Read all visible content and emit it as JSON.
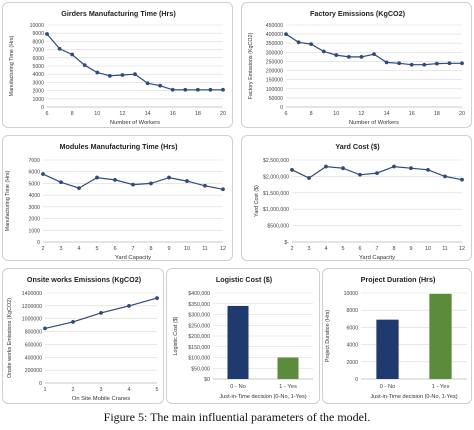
{
  "caption": "Figure 5: The main influential parameters of the model.",
  "colors": {
    "line": "#2f4b7c",
    "bar_no": "#1f3a6e",
    "bar_yes": "#5b8c3a"
  },
  "chart_data": [
    {
      "type": "line",
      "title": "Girders Manufacturing Time (Hrs)",
      "xlabel": "Number of Workers",
      "ylabel": "Manufacturing Time (Hrs)",
      "x": [
        6,
        7,
        8,
        9,
        10,
        11,
        12,
        13,
        14,
        15,
        16,
        17,
        18,
        19,
        20
      ],
      "values": [
        8900,
        7100,
        6400,
        5100,
        4200,
        3800,
        3900,
        4000,
        2900,
        2600,
        2100,
        2100,
        2100,
        2100,
        2100
      ],
      "xticks": [
        6,
        8,
        10,
        12,
        14,
        16,
        18,
        20
      ],
      "xlim": [
        6,
        20
      ],
      "ylim": [
        0,
        10000
      ],
      "yticks": [
        0,
        1000,
        2000,
        3000,
        4000,
        5000,
        6000,
        7000,
        8000,
        9000,
        10000
      ],
      "ytick_labels": [
        "0",
        "1000",
        "2000",
        "3000",
        "4000",
        "5000",
        "6000",
        "7000",
        "8000",
        "9000",
        "10000"
      ],
      "grid": true
    },
    {
      "type": "line",
      "title": "Factory Emissions (KgCO2)",
      "xlabel": "Number of Workers",
      "ylabel": "Factory Emissions (KgCO2)",
      "x": [
        6,
        7,
        8,
        9,
        10,
        11,
        12,
        13,
        14,
        15,
        16,
        17,
        18,
        19,
        20
      ],
      "values": [
        400000,
        355000,
        345000,
        305000,
        285000,
        275000,
        275000,
        290000,
        245000,
        240000,
        232000,
        232000,
        238000,
        240000,
        240000
      ],
      "xticks": [
        6,
        8,
        10,
        12,
        14,
        16,
        18,
        20
      ],
      "xlim": [
        6,
        20
      ],
      "ylim": [
        0,
        450000
      ],
      "yticks": [
        0,
        50000,
        100000,
        150000,
        200000,
        250000,
        300000,
        350000,
        400000,
        450000
      ],
      "ytick_labels": [
        "0",
        "50000",
        "100000",
        "150000",
        "200000",
        "250000",
        "300000",
        "350000",
        "400000",
        "450000"
      ],
      "grid": true
    },
    {
      "type": "line",
      "title": "Modules Manufacturing Time (Hrs)",
      "xlabel": "Yard Capacity",
      "ylabel": "Manufacturing Time (Hrs)",
      "x": [
        2,
        3,
        4,
        5,
        6,
        7,
        8,
        9,
        10,
        11,
        12
      ],
      "values": [
        5800,
        5100,
        4600,
        5500,
        5300,
        4900,
        5000,
        5500,
        5200,
        4800,
        4500
      ],
      "xticks": [
        2,
        3,
        4,
        5,
        6,
        7,
        8,
        9,
        10,
        11,
        12
      ],
      "xlim": [
        2,
        12
      ],
      "ylim": [
        0,
        7000
      ],
      "yticks": [
        0,
        1000,
        2000,
        3000,
        4000,
        5000,
        6000,
        7000
      ],
      "ytick_labels": [
        "0",
        "1000",
        "2000",
        "3000",
        "4000",
        "5000",
        "6000",
        "7000"
      ],
      "grid": true
    },
    {
      "type": "line",
      "title": "Yard Cost ($)",
      "xlabel": "Yard Capacity",
      "ylabel": "Yard Cost ($)",
      "x": [
        2,
        3,
        4,
        5,
        6,
        7,
        8,
        9,
        10,
        11,
        12
      ],
      "values": [
        2200000,
        1950000,
        2300000,
        2250000,
        2050000,
        2100000,
        2300000,
        2250000,
        2200000,
        2000000,
        1900000
      ],
      "xticks": [
        2,
        3,
        4,
        5,
        6,
        7,
        8,
        9,
        10,
        11,
        12
      ],
      "xlim": [
        2,
        12
      ],
      "ylim": [
        0,
        2500000
      ],
      "yticks": [
        0,
        500000,
        1000000,
        1500000,
        2000000,
        2500000
      ],
      "ytick_labels": [
        "$-",
        "$500,000",
        "$1,000,000",
        "$1,500,000",
        "$2,000,000",
        "$2,500,000"
      ],
      "grid": true
    },
    {
      "type": "line",
      "title": "Onsite works Emissions (KgCO2)",
      "xlabel": "On Site Mobile Cranes",
      "ylabel": "Onsite works Emissions (KgCO2)",
      "x": [
        1,
        2,
        3,
        4,
        5
      ],
      "values": [
        850000,
        950000,
        1090000,
        1200000,
        1320000
      ],
      "xticks": [
        1,
        2,
        3,
        4,
        5
      ],
      "xlim": [
        1,
        5
      ],
      "ylim": [
        0,
        1400000
      ],
      "yticks": [
        0,
        200000,
        400000,
        600000,
        800000,
        1000000,
        1200000,
        1400000
      ],
      "ytick_labels": [
        "0",
        "200000",
        "400000",
        "600000",
        "800000",
        "1000000",
        "1200000",
        "1400000"
      ],
      "grid": true
    },
    {
      "type": "bar",
      "title": "Logistic Cost ($)",
      "xlabel": "Just-in-Time decision (0-No, 1-Yes)",
      "ylabel": "Logistic Cost ($)",
      "categories": [
        "0 - No",
        "1 - Yes"
      ],
      "values": [
        340000,
        100000
      ],
      "ylim": [
        0,
        400000
      ],
      "yticks": [
        0,
        50000,
        100000,
        150000,
        200000,
        250000,
        300000,
        350000,
        400000
      ],
      "ytick_labels": [
        "$0",
        "$50,000",
        "$100,000",
        "$150,000",
        "$200,000",
        "$250,000",
        "$300,000",
        "$350,000",
        "$400,000"
      ],
      "grid": true
    },
    {
      "type": "bar",
      "title": "Project Duration (Hrs)",
      "xlabel": "Just-in-Time decision (0-No, 1-Yes)",
      "ylabel": "Project Duration (Hrs)",
      "categories": [
        "0 - No",
        "1 - Yes"
      ],
      "values": [
        6900,
        9900
      ],
      "ylim": [
        0,
        10000
      ],
      "yticks": [
        0,
        2000,
        4000,
        6000,
        8000,
        10000
      ],
      "ytick_labels": [
        "0",
        "2000",
        "4000",
        "6000",
        "8000",
        "10000"
      ],
      "grid": true
    }
  ]
}
